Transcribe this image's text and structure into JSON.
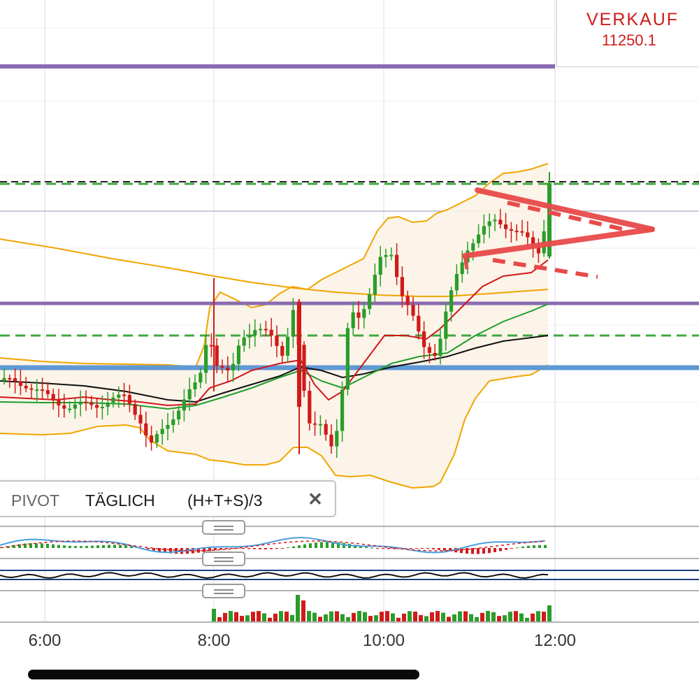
{
  "trade": {
    "action": "VERKAUF",
    "price": "11250.1"
  },
  "legend": {
    "indicator": "PIVOT",
    "period": "TÄGLICH",
    "formula": "(H+T+S)/3"
  },
  "icons": {
    "close": "close-icon",
    "pane_resize": "drag-handle-icon"
  },
  "colors": {
    "background": "#ffffff",
    "bullish": "#2a9d2a",
    "bearish": "#d11a1a",
    "bollinger": "#f0a500",
    "pivot_purple": "#8a6bb1",
    "pivot_blue": "#5f99d4",
    "pivot_green_dashed": "#3fa83f",
    "resistance_black_dashed": "#222222",
    "triangle": "#e84a4a"
  },
  "chart_data": {
    "type": "candlestick",
    "xlabel": "",
    "ylabel": "",
    "time_axis": [
      "6:00",
      "8:00",
      "10:00",
      "12:00"
    ],
    "last_price": 11250.1,
    "overlays": [
      "Bollinger Bands",
      "moving averages (red, green, black)",
      "daily pivot levels",
      "symmetrical triangle (trend lines)"
    ],
    "lower_panes": [
      "oscillator with histogram",
      "oscillator line",
      "volume"
    ],
    "grid": true
  }
}
